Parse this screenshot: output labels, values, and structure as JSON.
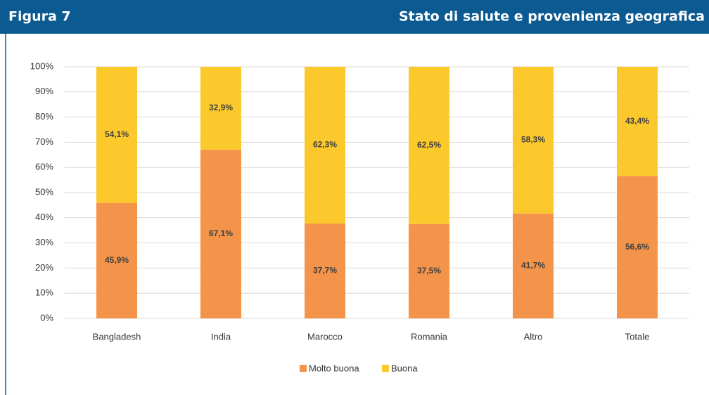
{
  "chart_data": {
    "type": "stacked_bar",
    "label": "Figura 7",
    "title": "Stato di salute e provenienza geografica",
    "categories": [
      "Bangladesh",
      "India",
      "Marocco",
      "Romania",
      "Altro",
      "Totale"
    ],
    "series": [
      {
        "name": "Molto buona",
        "color": "#f4934a",
        "values": [
          45.9,
          67.1,
          37.7,
          37.5,
          41.7,
          56.6
        ],
        "value_labels": [
          "45,9%",
          "67,1%",
          "37,7%",
          "37,5%",
          "41,7%",
          "56,6%"
        ]
      },
      {
        "name": "Buona",
        "color": "#fcc92c",
        "values": [
          54.1,
          32.9,
          62.3,
          62.5,
          58.3,
          43.4
        ],
        "value_labels": [
          "54,1%",
          "32,9%",
          "62,3%",
          "62,5%",
          "58,3%",
          "43,4%"
        ]
      }
    ],
    "ylim": [
      0,
      100
    ],
    "yticks": [
      {
        "value": 0,
        "label": "0%"
      },
      {
        "value": 10,
        "label": "10%"
      },
      {
        "value": 20,
        "label": "20%"
      },
      {
        "value": 30,
        "label": "30%"
      },
      {
        "value": 40,
        "label": "40%"
      },
      {
        "value": 50,
        "label": "50%"
      },
      {
        "value": 60,
        "label": "60%"
      },
      {
        "value": 70,
        "label": "70%"
      },
      {
        "value": 80,
        "label": "80%"
      },
      {
        "value": 90,
        "label": "90%"
      },
      {
        "value": 100,
        "label": "100%"
      }
    ],
    "grid": true,
    "legend": "bottom"
  }
}
